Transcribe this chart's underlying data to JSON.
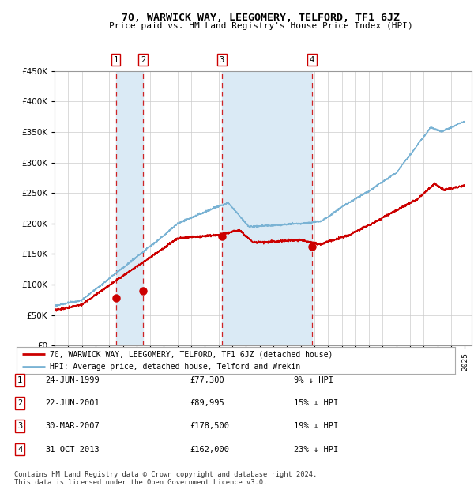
{
  "title": "70, WARWICK WAY, LEEGOMERY, TELFORD, TF1 6JZ",
  "subtitle": "Price paid vs. HM Land Registry's House Price Index (HPI)",
  "ylim": [
    0,
    450000
  ],
  "yticks": [
    0,
    50000,
    100000,
    150000,
    200000,
    250000,
    300000,
    350000,
    400000,
    450000
  ],
  "ytick_labels": [
    "£0",
    "£50K",
    "£100K",
    "£150K",
    "£200K",
    "£250K",
    "£300K",
    "£350K",
    "£400K",
    "£450K"
  ],
  "xlim_start": 1995.0,
  "xlim_end": 2025.5,
  "hpi_color": "#7ab3d4",
  "price_color": "#cc0000",
  "shade_color": "#daeaf5",
  "grid_color": "#cccccc",
  "background_color": "#ffffff",
  "transactions": [
    {
      "date": 1999.48,
      "price": 77300,
      "label": "1"
    },
    {
      "date": 2001.47,
      "price": 89995,
      "label": "2"
    },
    {
      "date": 2007.24,
      "price": 178500,
      "label": "3"
    },
    {
      "date": 2013.83,
      "price": 162000,
      "label": "4"
    }
  ],
  "table_rows": [
    {
      "num": "1",
      "date": "24-JUN-1999",
      "price": "£77,300",
      "note": "9% ↓ HPI"
    },
    {
      "num": "2",
      "date": "22-JUN-2001",
      "price": "£89,995",
      "note": "15% ↓ HPI"
    },
    {
      "num": "3",
      "date": "30-MAR-2007",
      "price": "£178,500",
      "note": "19% ↓ HPI"
    },
    {
      "num": "4",
      "date": "31-OCT-2013",
      "price": "£162,000",
      "note": "23% ↓ HPI"
    }
  ],
  "legend_line1": "70, WARWICK WAY, LEEGOMERY, TELFORD, TF1 6JZ (detached house)",
  "legend_line2": "HPI: Average price, detached house, Telford and Wrekin",
  "footer": "Contains HM Land Registry data © Crown copyright and database right 2024.\nThis data is licensed under the Open Government Licence v3.0."
}
